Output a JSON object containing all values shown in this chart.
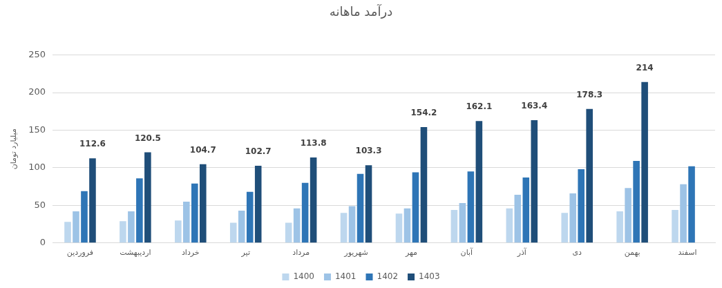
{
  "chart_data": {
    "type": "bar",
    "title": "درآمد ماهانه",
    "ylabel": "میلیارد تومان",
    "categories": [
      "فروردین",
      "اردیبهشت",
      "خرداد",
      "تیر",
      "مرداد",
      "شهریور",
      "مهر",
      "آبان",
      "آذر",
      "دی",
      "بهمن",
      "اسفند"
    ],
    "series": [
      {
        "name": "1400",
        "color": "#bdd7ee",
        "values": [
          28,
          29,
          30,
          27,
          27,
          40,
          39,
          44,
          46,
          40,
          42,
          44
        ]
      },
      {
        "name": "1401",
        "color": "#9dc3e6",
        "values": [
          42,
          42,
          55,
          43,
          46,
          49,
          46,
          53,
          64,
          66,
          73,
          78
        ]
      },
      {
        "name": "1402",
        "color": "#2e75b6",
        "values": [
          69,
          86,
          79,
          68,
          80,
          92,
          94,
          95,
          87,
          98,
          109,
          102
        ]
      },
      {
        "name": "1403",
        "color": "#1f4e79",
        "values": [
          112.6,
          120.5,
          104.7,
          102.7,
          113.8,
          103.3,
          154.2,
          162.1,
          163.4,
          178.3,
          214,
          null
        ],
        "value_labels": [
          "112.6",
          "120.5",
          "104.7",
          "102.7",
          "113.8",
          "103.3",
          "154.2",
          "162.1",
          "163.4",
          "178.3",
          "214",
          null
        ]
      }
    ],
    "ylim": [
      0,
      250
    ],
    "yticks": [
      0,
      50,
      100,
      150,
      200,
      250
    ],
    "grid": "y",
    "legend": "bottom"
  }
}
